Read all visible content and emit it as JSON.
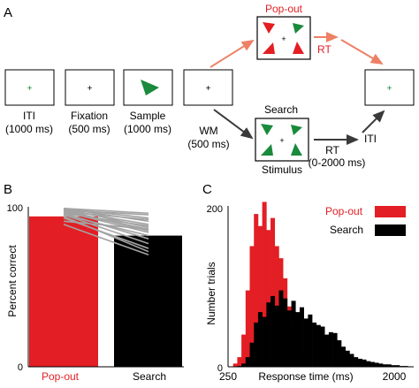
{
  "panels": {
    "a": "A",
    "b": "B",
    "c": "C"
  },
  "panel_a": {
    "popout_title": "Pop-out",
    "search_title": "Search",
    "stimulus_label": "Stimulus",
    "rt_top": "RT",
    "rt_bottom_1": "RT",
    "rt_bottom_2": "(0-2000 ms)",
    "iti_right": "ITI",
    "fixation_glyph": "+",
    "steps": [
      {
        "line1": "ITI",
        "line2": "(1000 ms)"
      },
      {
        "line1": "Fixation",
        "line2": "(500 ms)"
      },
      {
        "line1": "Sample",
        "line2": "(1000 ms)"
      },
      {
        "line1": "WM",
        "line2": "(500 ms)"
      }
    ],
    "colors": {
      "red": "#e31e24",
      "green": "#1a8a3c",
      "salmon": "#ee8065",
      "dark_arrow": "#3a3a3a"
    }
  },
  "panel_b": {
    "ylabel": "Percent correct",
    "ytick_top": "100",
    "ytick_bottom": "0",
    "categories": [
      "Pop-out",
      "Search"
    ]
  },
  "panel_c": {
    "ylabel": "Number trials",
    "xlabel": "Response time (ms)",
    "xtick_left": "250",
    "xtick_right": "2000",
    "ytick_top": "200",
    "ytick_bottom": "0",
    "legend": [
      "Pop-out",
      "Search"
    ]
  },
  "chart_data": [
    {
      "type": "bar",
      "panel": "B",
      "categories": [
        "Pop-out",
        "Search"
      ],
      "values": [
        94,
        82
      ],
      "ylim": [
        0,
        100
      ],
      "colors": [
        "#e31e24",
        "#000000"
      ],
      "individual_lines": [
        [
          99,
          96
        ],
        [
          99,
          93
        ],
        [
          99,
          91
        ],
        [
          98,
          95
        ],
        [
          98,
          89
        ],
        [
          97,
          86
        ],
        [
          97,
          84
        ],
        [
          96,
          88
        ],
        [
          96,
          80
        ],
        [
          95,
          77
        ],
        [
          93,
          74
        ],
        [
          91,
          86
        ],
        [
          89,
          70
        ],
        [
          94,
          72
        ],
        [
          98,
          85
        ],
        [
          97,
          92
        ],
        [
          95,
          82
        ],
        [
          99,
          87
        ]
      ],
      "line_color": "#a3a3a3"
    },
    {
      "type": "bar",
      "panel": "C",
      "bin_count": 44,
      "xlim": [
        250,
        2000
      ],
      "ylim": [
        0,
        200
      ],
      "grid": false,
      "legend_position": "top-right",
      "series": [
        {
          "name": "Pop-out",
          "color": "#e31e24",
          "values": [
            0,
            4,
            12,
            40,
            95,
            150,
            190,
            175,
            205,
            170,
            185,
            150,
            135,
            110,
            75,
            45,
            25,
            12,
            6,
            2,
            1,
            0,
            0,
            0,
            0,
            0,
            0,
            0,
            0,
            0,
            0,
            0,
            0,
            0,
            0,
            0,
            0,
            0,
            0,
            0,
            0,
            0,
            0,
            0
          ]
        },
        {
          "name": "Search",
          "color": "#000000",
          "values": [
            0,
            0,
            1,
            4,
            12,
            30,
            55,
            68,
            62,
            80,
            88,
            76,
            95,
            85,
            70,
            82,
            68,
            74,
            60,
            65,
            55,
            52,
            50,
            40,
            43,
            42,
            33,
            25,
            20,
            16,
            12,
            10,
            9,
            7,
            6,
            5,
            4,
            3,
            3,
            2,
            2,
            1,
            1,
            0
          ]
        }
      ]
    }
  ]
}
